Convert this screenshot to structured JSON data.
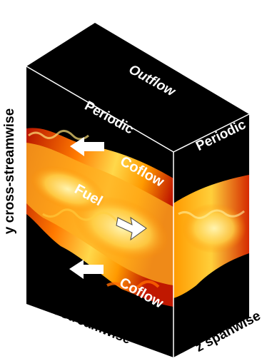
{
  "faces": {
    "top": "Outflow",
    "front_top": "Periodic",
    "side": "Periodic"
  },
  "streams": {
    "fuel": "Fuel",
    "coflow_upper": "Coflow",
    "coflow_lower": "Coflow"
  },
  "axes": {
    "y": "y cross-streamwise",
    "x": "x streamwise",
    "z": "z spanwise"
  },
  "colors": {
    "domain": "#000000",
    "flame_outer": "#c81e00",
    "flame_mid": "#ff8a00",
    "flame_core": "#ffe066",
    "arrow_fill": "#ffffff"
  }
}
